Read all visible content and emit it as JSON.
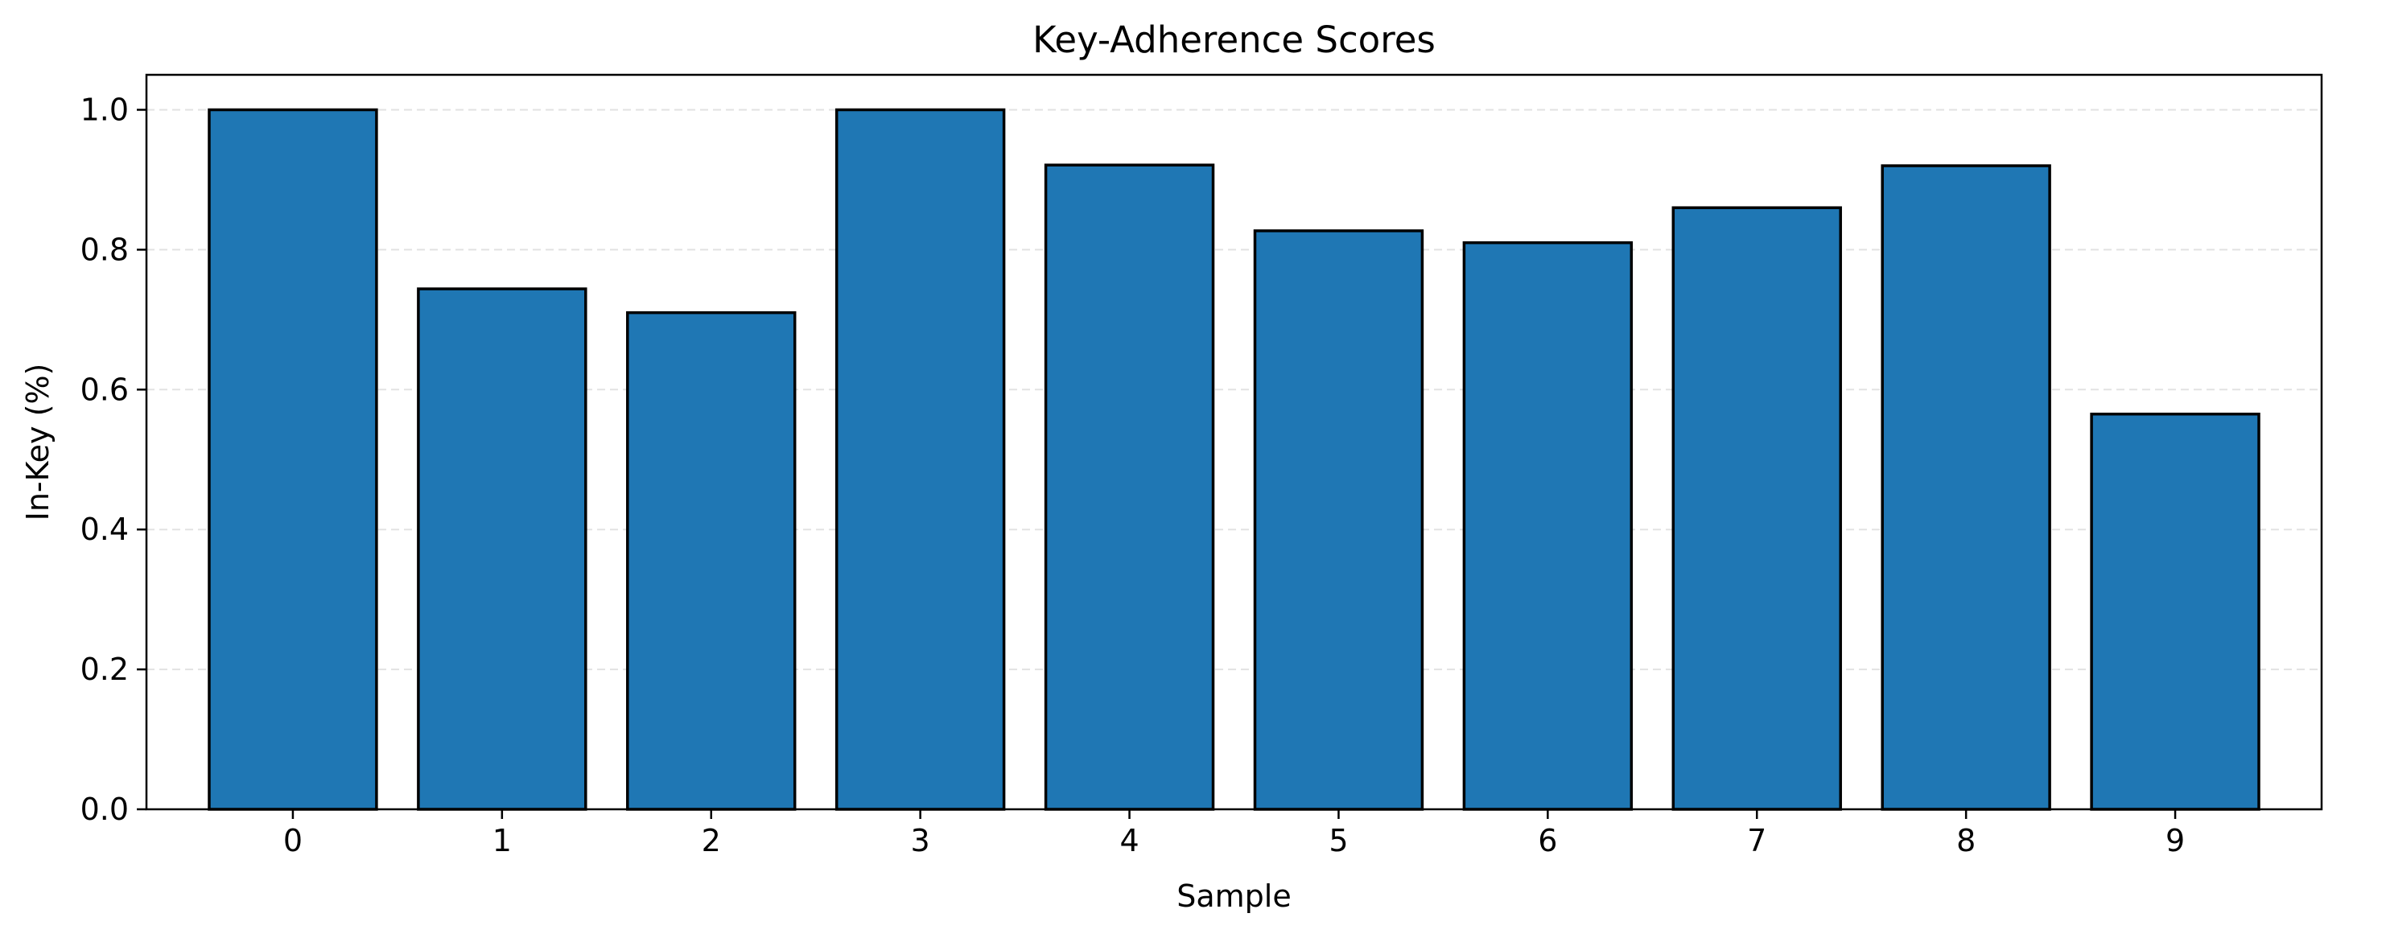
{
  "chart_data": {
    "type": "bar",
    "title": "Key-Adherence Scores",
    "xlabel": "Sample",
    "ylabel": "In-Key (%)",
    "categories": [
      "0",
      "1",
      "2",
      "3",
      "4",
      "5",
      "6",
      "7",
      "8",
      "9"
    ],
    "values": [
      1.0,
      0.744,
      0.71,
      1.0,
      0.921,
      0.827,
      0.81,
      0.86,
      0.92,
      0.565
    ],
    "ylim": [
      0,
      1.05
    ],
    "yticks": [
      "0.0",
      "0.2",
      "0.4",
      "0.6",
      "0.8",
      "1.0"
    ],
    "grid": "y-dashed",
    "bar_color": "#1f77b4",
    "edge_color": "#000000"
  }
}
